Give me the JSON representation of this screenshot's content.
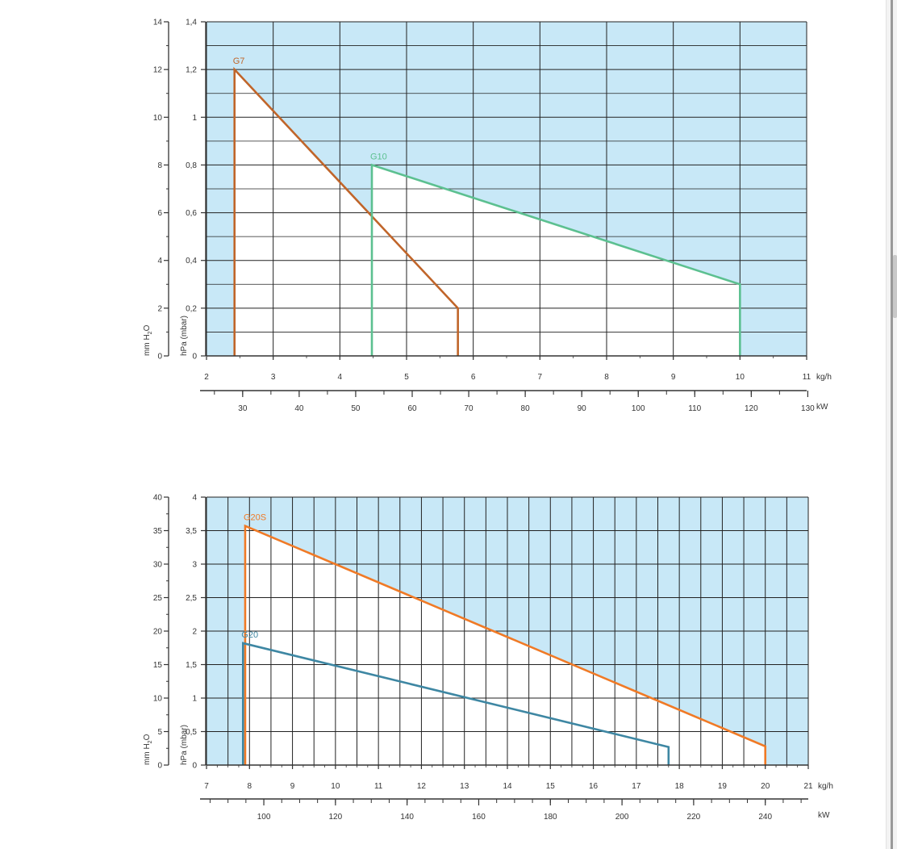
{
  "colors": {
    "background_fill": "#c8e8f7",
    "grid": "#222222",
    "G7": "#c0652a",
    "G10": "#5cc090",
    "G20S": "#f07a26",
    "G20": "#3e87a3"
  },
  "chart_data": [
    {
      "type": "area",
      "grid": true,
      "y_left_label": "mm H2O",
      "y_left_ticks": [
        "0",
        "2",
        "4",
        "6",
        "8",
        "10",
        "12",
        "14"
      ],
      "y_right_label": "hPa (mbar)",
      "y_right_ticks": [
        "0",
        "0,2",
        "0,4",
        "0,6",
        "0,8",
        "1",
        "1,2",
        "1,4"
      ],
      "ylim": [
        0,
        1.4
      ],
      "x_top_unit": "kg/h",
      "x_top_ticks": [
        "2",
        "3",
        "4",
        "5",
        "6",
        "7",
        "8",
        "9",
        "10",
        "11"
      ],
      "xlim": [
        2,
        11
      ],
      "x_bottom_unit": "kW",
      "x_bottom_ticks": [
        "30",
        "40",
        "50",
        "60",
        "70",
        "80",
        "90",
        "100",
        "110",
        "120",
        "130"
      ],
      "kw_per_kgh": 11.8,
      "series": [
        {
          "name": "G7",
          "color_key": "G7",
          "points": [
            [
              2.42,
              0
            ],
            [
              2.42,
              1.2
            ],
            [
              5.77,
              0.2
            ],
            [
              5.77,
              0
            ]
          ]
        },
        {
          "name": "G10",
          "color_key": "G10",
          "points": [
            [
              4.48,
              0
            ],
            [
              4.48,
              0.8
            ],
            [
              10.0,
              0.3
            ],
            [
              10.0,
              0
            ]
          ]
        }
      ]
    },
    {
      "type": "area",
      "grid": true,
      "y_left_label": "mm H2O",
      "y_left_ticks": [
        "0",
        "5",
        "10",
        "15",
        "20",
        "25",
        "30",
        "35",
        "40"
      ],
      "y_right_label": "hPa (mbar)",
      "y_right_ticks": [
        "0",
        "0,5",
        "1",
        "1,5",
        "2",
        "2,5",
        "3",
        "3,5",
        "4"
      ],
      "ylim": [
        0,
        4
      ],
      "x_top_unit": "kg/h",
      "x_top_ticks": [
        "7",
        "8",
        "9",
        "10",
        "11",
        "12",
        "13",
        "14",
        "15",
        "16",
        "17",
        "18",
        "19",
        "20",
        "21"
      ],
      "xlim": [
        7,
        21
      ],
      "x_bottom_unit": "kW",
      "x_bottom_ticks": [
        "100",
        "120",
        "140",
        "160",
        "180",
        "200",
        "220",
        "240"
      ],
      "kw_per_kgh": 12.0,
      "series": [
        {
          "name": "G20S",
          "color_key": "G20S",
          "points": [
            [
              7.9,
              0
            ],
            [
              7.9,
              3.57
            ],
            [
              20.0,
              0.28
            ],
            [
              20.0,
              0
            ]
          ]
        },
        {
          "name": "G20",
          "color_key": "G20",
          "points": [
            [
              7.85,
              0
            ],
            [
              7.85,
              1.82
            ],
            [
              17.75,
              0.27
            ],
            [
              17.75,
              0
            ]
          ]
        }
      ]
    }
  ]
}
